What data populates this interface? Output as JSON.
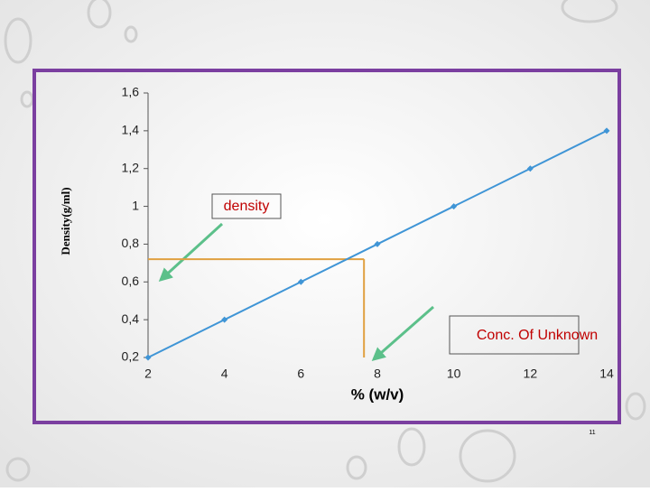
{
  "chart_data": {
    "type": "line",
    "x": [
      2,
      4,
      6,
      8,
      10,
      12,
      14
    ],
    "series": [
      {
        "name": "density",
        "color": "#3f95d6",
        "values": [
          0.2,
          0.4,
          0.6,
          0.8,
          1,
          1.2,
          1.4
        ]
      }
    ],
    "xlim": [
      2,
      14
    ],
    "xticks": [
      2,
      4,
      6,
      8,
      10,
      12,
      14
    ],
    "ylim": [
      0.2,
      1.6
    ],
    "yticks": [
      {
        "value": 0.2,
        "label": "0,2"
      },
      {
        "value": 0.4,
        "label": "0,4"
      },
      {
        "value": 0.6,
        "label": "0,6"
      },
      {
        "value": 0.8,
        "label": "0,8"
      },
      1,
      {
        "value": 1.2,
        "label": "1,2"
      },
      {
        "value": 1.4,
        "label": "1,4"
      },
      {
        "value": 1.6,
        "label": "1,6"
      }
    ],
    "x_label": "% (w/v)",
    "y_label": "Density(g/ml)",
    "annotation": "Conc. Of Unknown",
    "reference_point": {
      "x": 7.65,
      "y": 0.72,
      "color": "#e0a040"
    }
  },
  "page_number": "11"
}
